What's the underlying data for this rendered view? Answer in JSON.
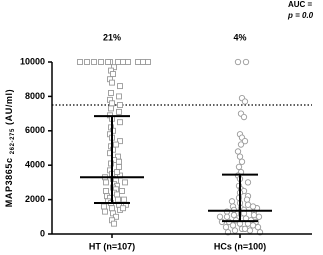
{
  "chart_data": {
    "type": "dotplot",
    "annotation_auc": "AUC =",
    "annotation_p": "p = 0.0",
    "ylabel": "MAP3865c",
    "ylabel_sub": "262-275",
    "ylabel_unit": "(AU/ml)",
    "ylim": [
      0,
      10000
    ],
    "yticks": [
      0,
      2000,
      4000,
      6000,
      8000,
      10000
    ],
    "cutoff": 7500,
    "groups": [
      {
        "label": "HT (n=107)",
        "percent": "21%",
        "marker": "square",
        "color": "#9a9a9a",
        "median": 3300,
        "q1": 1800,
        "q3": 6850,
        "values": [
          10000,
          10000,
          10000,
          10000,
          10000,
          10000,
          10000,
          10000,
          10000,
          10000,
          10000,
          10000,
          9700,
          9500,
          9300,
          9000,
          8800,
          8600,
          8200,
          8000,
          7800,
          7600,
          7500,
          7300,
          7100,
          6900,
          6700,
          6500,
          6200,
          6000,
          5800,
          5600,
          5400,
          5100,
          4900,
          4700,
          4500,
          4300,
          4100,
          3900,
          3700,
          3500,
          3400,
          3300,
          3200,
          3100,
          3000,
          2900,
          2800,
          2700,
          2600,
          2500,
          2400,
          2300,
          2200,
          2100,
          2000,
          1900,
          1800,
          1700,
          1600,
          1500,
          1400,
          1300,
          1200,
          1000,
          800,
          600,
          3600,
          3000,
          2500,
          2000,
          1700,
          1500,
          4200,
          5200
        ]
      },
      {
        "label": "HCs (n=100)",
        "percent": "4%",
        "marker": "circle",
        "color": "#9a9a9a",
        "median": 1350,
        "q1": 750,
        "q3": 3450,
        "values": [
          10000,
          10000,
          7900,
          7700,
          7000,
          6800,
          5800,
          5600,
          5400,
          5200,
          4800,
          4500,
          4200,
          3900,
          3600,
          3400,
          3200,
          3000,
          2800,
          2600,
          2500,
          2400,
          2200,
          2100,
          2000,
          1900,
          1800,
          1700,
          1600,
          1500,
          1400,
          1400,
          1300,
          1300,
          1200,
          1200,
          1100,
          1100,
          1000,
          1000,
          900,
          900,
          800,
          800,
          700,
          700,
          600,
          600,
          500,
          500,
          400,
          400,
          300,
          300,
          200,
          200,
          100,
          100,
          1500,
          1600,
          1000,
          700
        ]
      }
    ]
  }
}
